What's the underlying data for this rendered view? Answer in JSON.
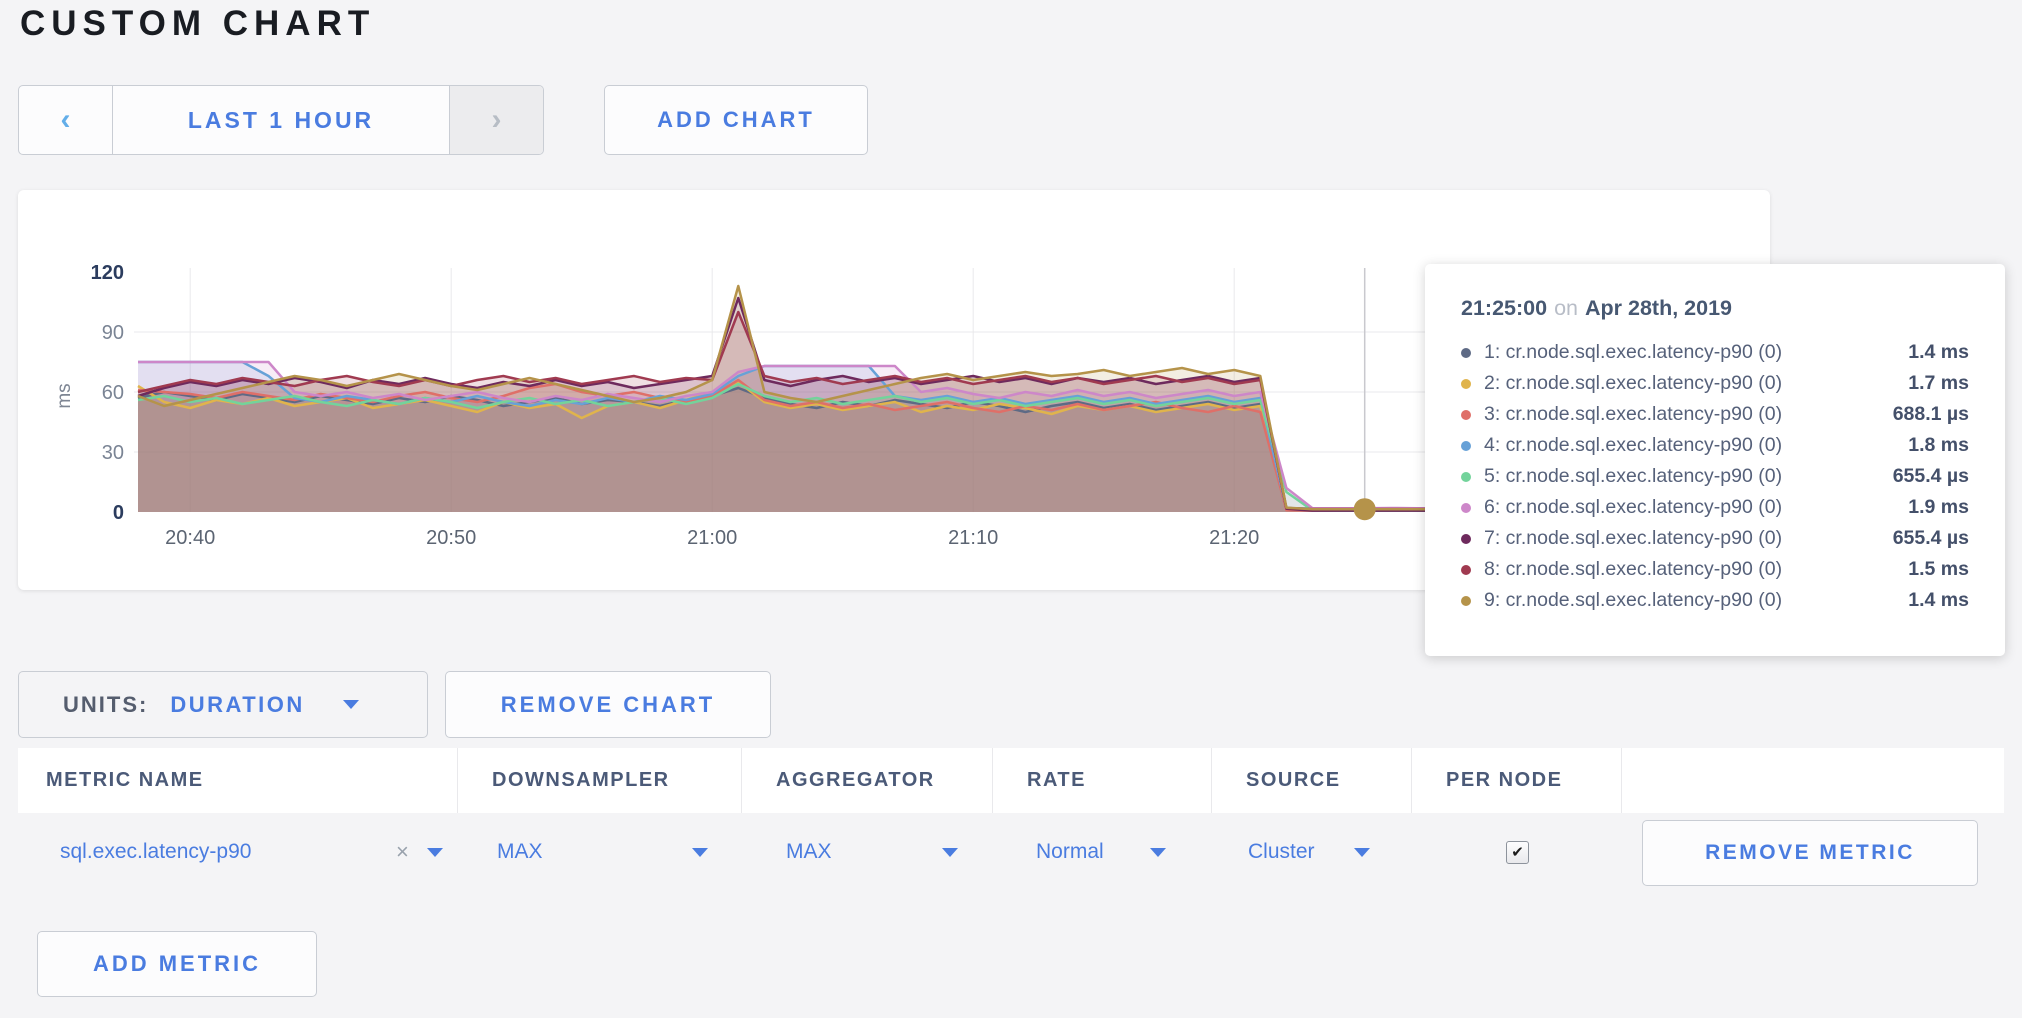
{
  "page": {
    "title": "CUSTOM CHART"
  },
  "toolbar": {
    "prev_label": "‹",
    "time_range": "LAST 1 HOUR",
    "next_label": "›",
    "add_chart": "ADD CHART"
  },
  "controls": {
    "units_label": "UNITS:",
    "units_value": "DURATION",
    "remove_chart": "REMOVE CHART",
    "remove_metric": "REMOVE METRIC",
    "add_metric": "ADD METRIC"
  },
  "tooltip": {
    "time": "21:25:00",
    "on": "on",
    "date": "Apr 28th, 2019",
    "rows": [
      {
        "dot_color": "#5e6a85",
        "label": "1: cr.node.sql.exec.latency-p90 (0)",
        "value": "1.4 ms"
      },
      {
        "dot_color": "#e0b44c",
        "label": "2: cr.node.sql.exec.latency-p90 (0)",
        "value": "1.7 ms"
      },
      {
        "dot_color": "#df6f68",
        "label": "3: cr.node.sql.exec.latency-p90 (0)",
        "value": "688.1 µs"
      },
      {
        "dot_color": "#67a1d7",
        "label": "4: cr.node.sql.exec.latency-p90 (0)",
        "value": "1.8 ms"
      },
      {
        "dot_color": "#73d39b",
        "label": "5: cr.node.sql.exec.latency-p90 (0)",
        "value": "655.4 µs"
      },
      {
        "dot_color": "#cd87c9",
        "label": "6: cr.node.sql.exec.latency-p90 (0)",
        "value": "1.9 ms"
      },
      {
        "dot_color": "#6e2a5d",
        "label": "7: cr.node.sql.exec.latency-p90 (0)",
        "value": "655.4 µs"
      },
      {
        "dot_color": "#a03a50",
        "label": "8: cr.node.sql.exec.latency-p90 (0)",
        "value": "1.5 ms"
      },
      {
        "dot_color": "#b5934a",
        "label": "9: cr.node.sql.exec.latency-p90 (0)",
        "value": "1.4 ms"
      }
    ]
  },
  "table": {
    "headers": [
      "METRIC NAME",
      "DOWNSAMPLER",
      "AGGREGATOR",
      "RATE",
      "SOURCE",
      "PER NODE",
      ""
    ],
    "row": {
      "metric_name": "sql.exec.latency-p90",
      "clear_label": "×",
      "downsampler": "MAX",
      "aggregator": "MAX",
      "rate": "Normal",
      "source": "Cluster",
      "per_node_checked": true,
      "check_glyph": "✔"
    }
  },
  "chart_data": {
    "type": "area",
    "title": "",
    "xlabel": "",
    "ylabel": "ms",
    "ylim": [
      0,
      120
    ],
    "y_ticks": [
      0,
      30,
      60,
      90,
      120
    ],
    "x_minutes_start": "20:38",
    "x_ticks": [
      {
        "t": 2,
        "label": "20:40"
      },
      {
        "t": 12,
        "label": "20:50"
      },
      {
        "t": 22,
        "label": "21:00"
      },
      {
        "t": 32,
        "label": "21:10"
      },
      {
        "t": 42,
        "label": "21:20"
      }
    ],
    "grid": true,
    "legend_position": "tooltip",
    "crosshair": {
      "t": 47,
      "time_label": "21:25:00"
    },
    "hover_point": {
      "series": "9: cr.node.sql.exec.latency-p90 (0)",
      "t": 47,
      "value_ms": 1.4
    },
    "series": [
      {
        "name": "1: cr.node.sql.exec.latency-p90 (0)",
        "color": "#5e6a85",
        "values": [
          57,
          60,
          58,
          56,
          59,
          57,
          55,
          58,
          56,
          54,
          57,
          55,
          58,
          56,
          53,
          55,
          57,
          54,
          56,
          55,
          53,
          56,
          58,
          62,
          57,
          54,
          52,
          55,
          53,
          56,
          54,
          52,
          55,
          53,
          50,
          53,
          55,
          52,
          54,
          51,
          53,
          55,
          52,
          54,
          2,
          1.5,
          1.4,
          1.4,
          1.5,
          1.4,
          1.4,
          1.4,
          1.4
        ]
      },
      {
        "name": "2: cr.node.sql.exec.latency-p90 (0)",
        "color": "#e0b44c",
        "values": [
          63,
          55,
          52,
          56,
          54,
          57,
          53,
          55,
          57,
          52,
          54,
          56,
          53,
          50,
          55,
          52,
          54,
          47,
          53,
          55,
          52,
          56,
          60,
          65,
          55,
          52,
          54,
          51,
          53,
          55,
          50,
          53,
          51,
          54,
          52,
          49,
          53,
          51,
          53,
          50,
          52,
          54,
          51,
          53,
          1.8,
          1.7,
          1.7,
          1.7,
          1.8,
          1.7,
          1.7,
          1.7,
          1.7
        ]
      },
      {
        "name": "3: cr.node.sql.exec.latency-p90 (0)",
        "color": "#df6f68",
        "values": [
          61,
          60,
          59,
          57,
          60,
          58,
          56,
          59,
          57,
          55,
          58,
          60,
          57,
          55,
          58,
          62,
          64,
          60,
          58,
          60,
          57,
          55,
          58,
          66,
          56,
          53,
          55,
          52,
          54,
          51,
          53,
          55,
          52,
          50,
          53,
          51,
          54,
          51,
          53,
          55,
          52,
          50,
          53,
          50,
          0.9,
          0.7,
          0.7,
          0.7,
          0.7,
          0.7,
          0.7,
          0.7,
          0.7
        ]
      },
      {
        "name": "4: cr.node.sql.exec.latency-p90 (0)",
        "color": "#67a1d7",
        "values": [
          75,
          75,
          75,
          75,
          75,
          68,
          57,
          55,
          58,
          56,
          54,
          57,
          55,
          58,
          55,
          53,
          56,
          54,
          57,
          55,
          58,
          56,
          59,
          68,
          73,
          73,
          73,
          73,
          73,
          58,
          56,
          58,
          55,
          57,
          54,
          56,
          58,
          55,
          57,
          54,
          56,
          58,
          55,
          57,
          1.9,
          1.8,
          1.8,
          1.8,
          1.9,
          1.8,
          1.8,
          1.8,
          1.8
        ]
      },
      {
        "name": "5: cr.node.sql.exec.latency-p90 (0)",
        "color": "#73d39b",
        "values": [
          56,
          58,
          55,
          57,
          54,
          56,
          58,
          55,
          53,
          56,
          54,
          57,
          55,
          52,
          55,
          57,
          54,
          56,
          53,
          55,
          57,
          54,
          57,
          64,
          58,
          55,
          57,
          54,
          56,
          58,
          55,
          57,
          54,
          56,
          53,
          55,
          57,
          54,
          56,
          53,
          55,
          57,
          54,
          56,
          10,
          0.8,
          0.7,
          0.7,
          0.7,
          0.7,
          0.7,
          0.7,
          0.7
        ]
      },
      {
        "name": "6: cr.node.sql.exec.latency-p90 (0)",
        "color": "#cd87c9",
        "values": [
          75,
          75,
          75,
          75,
          75,
          75,
          60,
          58,
          60,
          57,
          59,
          56,
          58,
          60,
          57,
          55,
          58,
          56,
          59,
          57,
          55,
          58,
          60,
          70,
          73,
          73,
          73,
          73,
          73,
          73,
          60,
          62,
          59,
          57,
          60,
          58,
          61,
          58,
          60,
          57,
          59,
          61,
          58,
          60,
          12,
          1.9,
          1.9,
          1.9,
          2,
          1.9,
          1.9,
          1.9,
          1.9
        ]
      },
      {
        "name": "7: cr.node.sql.exec.latency-p90 (0)",
        "color": "#6e2a5d",
        "values": [
          58,
          62,
          65,
          63,
          66,
          64,
          67,
          65,
          62,
          66,
          64,
          67,
          64,
          62,
          65,
          63,
          66,
          63,
          65,
          62,
          64,
          66,
          68,
          107,
          66,
          63,
          66,
          68,
          65,
          67,
          64,
          66,
          68,
          65,
          67,
          64,
          67,
          65,
          67,
          64,
          66,
          68,
          65,
          67,
          1.6,
          0.7,
          0.7,
          0.7,
          0.7,
          0.7,
          0.7,
          0.7,
          0.7
        ]
      },
      {
        "name": "8: cr.node.sql.exec.latency-p90 (0)",
        "color": "#a03a50",
        "values": [
          60,
          63,
          66,
          64,
          67,
          65,
          63,
          66,
          68,
          65,
          63,
          66,
          63,
          66,
          68,
          65,
          67,
          64,
          66,
          68,
          65,
          67,
          66,
          100,
          68,
          65,
          67,
          64,
          66,
          68,
          65,
          67,
          64,
          66,
          68,
          65,
          67,
          64,
          66,
          68,
          65,
          67,
          64,
          66,
          2,
          1.5,
          1.5,
          1.5,
          1.5,
          1.5,
          1.5,
          1.5,
          1.5
        ]
      },
      {
        "name": "9: cr.node.sql.exec.latency-p90 (0)",
        "color": "#b5934a",
        "values": [
          58,
          53,
          56,
          59,
          62,
          65,
          68,
          66,
          63,
          66,
          69,
          66,
          63,
          61,
          64,
          67,
          64,
          61,
          58,
          55,
          57,
          60,
          66,
          113,
          60,
          57,
          55,
          58,
          61,
          64,
          67,
          69,
          66,
          68,
          70,
          68,
          69,
          71,
          68,
          70,
          72,
          69,
          71,
          68,
          2.2,
          1.4,
          1.4,
          1.4,
          1.4,
          1.4,
          1.4,
          1.4,
          1.4
        ]
      }
    ]
  },
  "colors": {
    "accent_blue": "#4a7ce0",
    "chevron_blue": "#63aee9",
    "chevron_gray": "#b7bdc5",
    "header_text": "#4b5a78",
    "grid": "#e9e9ec",
    "crosshair": "#c9c9ce",
    "tick_gray": "#7a8494",
    "tick_dark": "#2b3c5e",
    "page_bg": "#f4f4f6"
  }
}
